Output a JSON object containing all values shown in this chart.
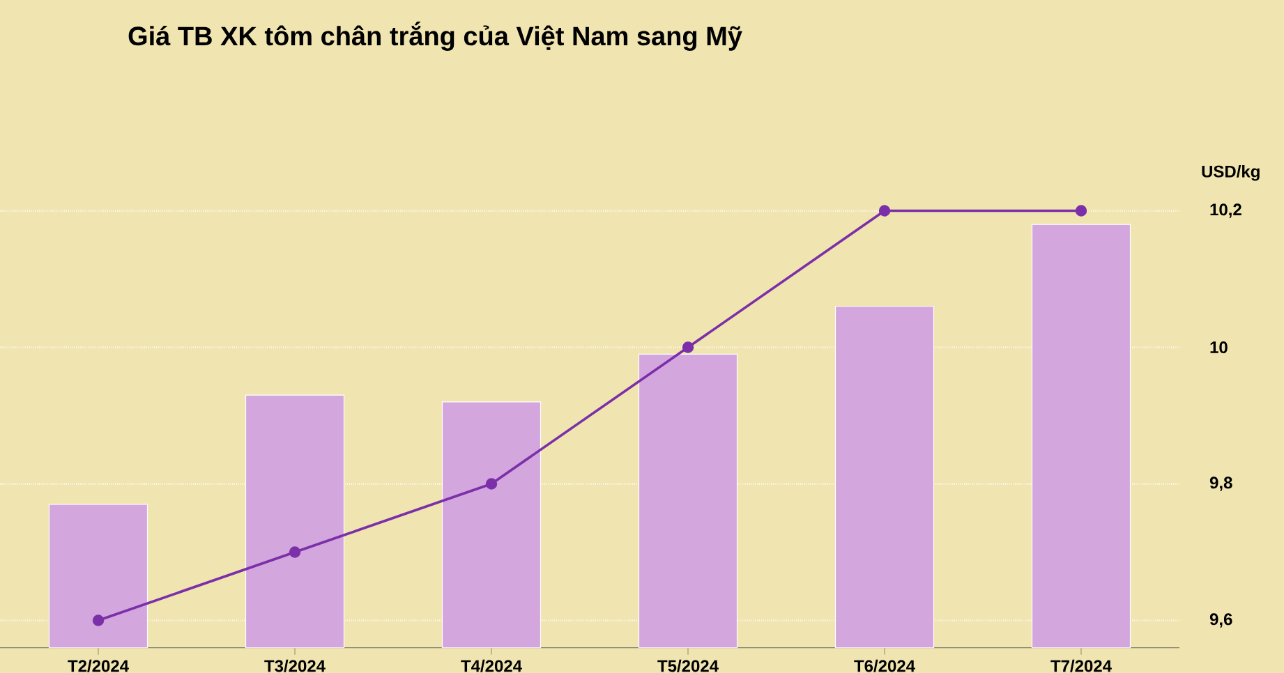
{
  "chart_data": {
    "type": "bar",
    "title": "Giá TB XK tôm chân trắng của Việt Nam sang Mỹ",
    "ylabel": "USD/kg",
    "categories": [
      "T2/2024",
      "T3/2024",
      "T4/2024",
      "T5/2024",
      "T6/2024",
      "T7/2024"
    ],
    "series": [
      {
        "color": "#d3a6de",
        "values": [
          9.77,
          9.93,
          9.92,
          9.99,
          10.06,
          10.18
        ]
      },
      {
        "type": "line",
        "color": "#7b2fa8",
        "marker": "circle",
        "values": [
          9.6,
          9.7,
          9.8,
          10.0,
          10.2,
          10.2
        ]
      }
    ],
    "ylim": [
      9.56,
      10.2
    ],
    "yticks": [
      {
        "value": 9.6,
        "label": "9,6"
      },
      {
        "value": 9.8,
        "label": "9,8"
      },
      10,
      {
        "value": 10.2,
        "label": "10,2"
      }
    ],
    "grid": "y"
  }
}
